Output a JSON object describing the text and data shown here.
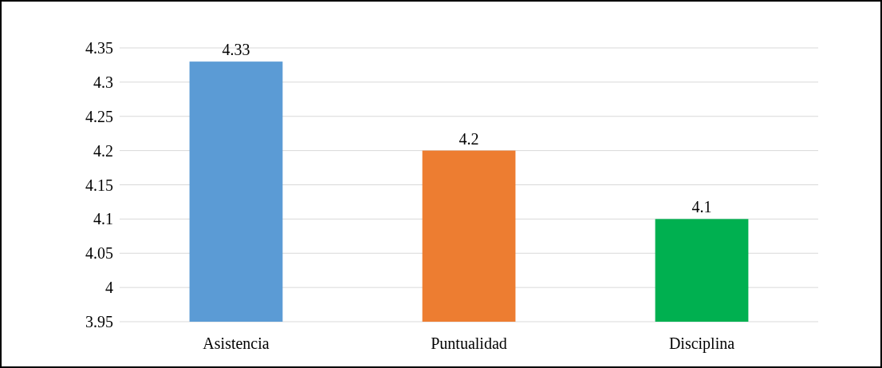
{
  "chart_data": {
    "type": "bar",
    "categories": [
      "Asistencia",
      "Puntualidad",
      "Disciplina"
    ],
    "values": [
      4.33,
      4.2,
      4.1
    ],
    "colors": [
      "#5b9bd5",
      "#ed7d31",
      "#00b050"
    ],
    "ylim": [
      3.95,
      4.35
    ],
    "yticks": [
      3.95,
      4,
      4.05,
      4.1,
      4.15,
      4.2,
      4.25,
      4.3,
      4.35
    ],
    "grid": "y",
    "data_labels": true
  }
}
